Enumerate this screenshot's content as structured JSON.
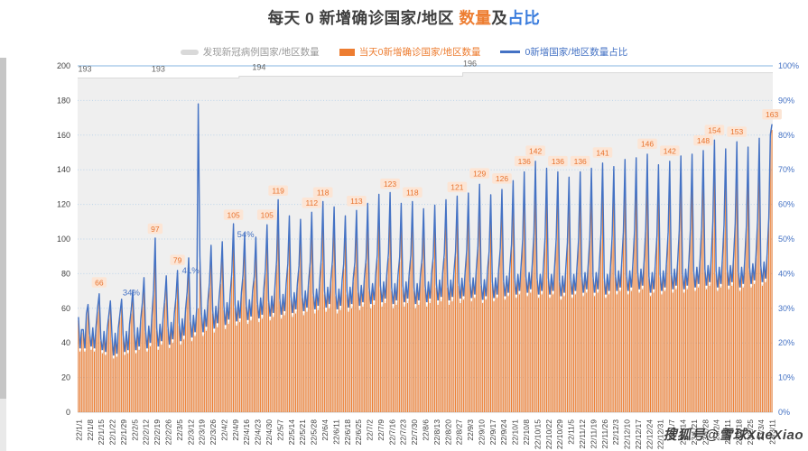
{
  "title": {
    "text_main": "每天 0 新增确诊国家/地区 ",
    "text_count": "数量",
    "text_and": "及",
    "text_pct": "占比",
    "color_main": "#3f3f3f",
    "color_count": "#ED7D31",
    "color_pct": "#3B7DDD"
  },
  "legend": {
    "items": [
      {
        "label": "发现新冠病例国家/地区数量",
        "color": "#D9D9D9",
        "swatch": "area"
      },
      {
        "label": "当天0新增确诊国家/地区数量",
        "color": "#ED7D31",
        "swatch": "bar"
      },
      {
        "label": "0新增国家/地区数量占比",
        "color": "#4472C4",
        "swatch": "line"
      }
    ]
  },
  "watermark": {
    "text": "搜狐号@雪球XueXiao"
  },
  "chart_data": {
    "type": "combo",
    "title": "每天 0 新增确诊国家/地区 数量及占比",
    "frequency": "daily",
    "start_date": "22/1/1",
    "end_date": "23/3/11",
    "n_days": 435,
    "grid": true,
    "left_axis": {
      "min": 0,
      "max": 200,
      "step": 20,
      "tick_labels": [
        "0",
        "20",
        "40",
        "60",
        "80",
        "100",
        "120",
        "140",
        "160",
        "180",
        "200"
      ],
      "color": "#404040"
    },
    "right_axis": {
      "min": 0,
      "max": 100,
      "step": 10,
      "tick_labels": [
        "0%",
        "10%",
        "20%",
        "30%",
        "40%",
        "50%",
        "60%",
        "70%",
        "80%",
        "90%",
        "100%"
      ],
      "color": "#4472C4"
    },
    "x_tick_labels": [
      "22/1/1",
      "22/1/8",
      "22/1/15",
      "22/1/22",
      "22/1/29",
      "22/2/5",
      "22/2/12",
      "22/2/19",
      "22/2/26",
      "22/3/5",
      "22/3/12",
      "22/3/19",
      "22/3/26",
      "22/4/2",
      "22/4/9",
      "22/4/16",
      "22/4/23",
      "22/4/30",
      "22/5/7",
      "22/5/14",
      "22/5/21",
      "22/5/28",
      "22/6/4",
      "22/6/11",
      "22/6/18",
      "22/6/25",
      "22/7/2",
      "22/7/9",
      "22/7/16",
      "22/7/23",
      "22/7/30",
      "22/8/6",
      "22/8/13",
      "22/8/20",
      "22/8/27",
      "22/9/3",
      "22/9/10",
      "22/9/17",
      "22/9/24",
      "22/10/1",
      "22/10/8",
      "22/10/15",
      "22/10/22",
      "22/10/29",
      "22/11/5",
      "22/11/12",
      "22/11/19",
      "22/11/26",
      "22/12/3",
      "22/12/10",
      "22/12/17",
      "22/12/24",
      "22/12/31",
      "23/1/7",
      "23/1/14",
      "23/1/21",
      "23/1/28",
      "23/2/4",
      "23/2/11",
      "23/2/18",
      "23/2/25",
      "23/3/4",
      "23/3/11"
    ],
    "series": [
      {
        "name": "发现新冠病例国家/地区数量",
        "type": "area",
        "axis": "left",
        "fill_color": "#EFEFEF",
        "edge_color": "#D9D9D9",
        "segments": [
          {
            "through_day": 100,
            "value": 193
          },
          {
            "through_day": 240,
            "value": 194
          },
          {
            "through_day": 434,
            "value": 196
          }
        ],
        "value_labels": [
          {
            "day": 4,
            "text": "193"
          },
          {
            "day": 50,
            "text": "193"
          },
          {
            "day": 113,
            "text": "194"
          },
          {
            "day": 245,
            "text": "196"
          }
        ]
      },
      {
        "name": "当天0新增确诊国家/地区数量",
        "type": "bar",
        "axis": "left",
        "color": "#ED7D31",
        "label_box_color": "#FCE5D5",
        "label_text_color": "#E8732E",
        "values": [
          53,
          35,
          46,
          46,
          35,
          55,
          60,
          44,
          36,
          47,
          35,
          48,
          58,
          66,
          41,
          34,
          45,
          33,
          46,
          54,
          62,
          42,
          31,
          44,
          32,
          47,
          55,
          63,
          43,
          33,
          45,
          34,
          49,
          57,
          68,
          45,
          34,
          47,
          36,
          52,
          61,
          75,
          46,
          35,
          48,
          38,
          54,
          68,
          97,
          47,
          36,
          49,
          39,
          53,
          63,
          76,
          48,
          37,
          50,
          40,
          55,
          64,
          79,
          50,
          39,
          52,
          42,
          57,
          67,
          86,
          52,
          41,
          54,
          44,
          58,
          60,
          87,
          55,
          44,
          57,
          47,
          62,
          72,
          93,
          57,
          46,
          59,
          49,
          64,
          74,
          95,
          59,
          48,
          61,
          51,
          66,
          78,
          105,
          60,
          50,
          62,
          52,
          67,
          77,
          100,
          61,
          51,
          63,
          53,
          68,
          76,
          98,
          62,
          52,
          64,
          54,
          69,
          80,
          105,
          63,
          53,
          65,
          55,
          71,
          85,
          119,
          64,
          54,
          66,
          56,
          72,
          83,
          110,
          65,
          55,
          67,
          57,
          72,
          82,
          108,
          66,
          56,
          68,
          58,
          73,
          84,
          112,
          67,
          57,
          69,
          59,
          74,
          86,
          118,
          68,
          58,
          70,
          60,
          75,
          85,
          115,
          67,
          57,
          69,
          59,
          74,
          83,
          110,
          68,
          58,
          70,
          60,
          75,
          84,
          113,
          69,
          59,
          71,
          61,
          76,
          86,
          117,
          70,
          60,
          72,
          62,
          77,
          88,
          122,
          71,
          61,
          73,
          63,
          78,
          89,
          123,
          70,
          60,
          72,
          62,
          77,
          87,
          117,
          71,
          61,
          73,
          63,
          78,
          88,
          118,
          70,
          60,
          72,
          62,
          77,
          86,
          114,
          71,
          61,
          73,
          63,
          78,
          87,
          116,
          72,
          62,
          74,
          64,
          79,
          89,
          119,
          72,
          62,
          74,
          64,
          79,
          90,
          121,
          73,
          63,
          75,
          65,
          80,
          92,
          124,
          74,
          64,
          76,
          66,
          81,
          94,
          129,
          73,
          63,
          75,
          65,
          80,
          91,
          123,
          74,
          64,
          76,
          66,
          81,
          93,
          126,
          75,
          65,
          77,
          67,
          82,
          95,
          131,
          76,
          66,
          78,
          68,
          83,
          98,
          136,
          77,
          67,
          79,
          69,
          84,
          101,
          142,
          76,
          66,
          78,
          68,
          83,
          99,
          138,
          76,
          66,
          78,
          68,
          83,
          98,
          136,
          75,
          65,
          77,
          67,
          82,
          96,
          133,
          76,
          66,
          78,
          68,
          83,
          98,
          136,
          77,
          67,
          79,
          69,
          84,
          99,
          138,
          77,
          67,
          79,
          69,
          84,
          101,
          141,
          76,
          66,
          78,
          68,
          83,
          100,
          139,
          78,
          68,
          80,
          70,
          85,
          102,
          143,
          78,
          68,
          80,
          70,
          85,
          103,
          144,
          79,
          69,
          81,
          71,
          86,
          104,
          146,
          77,
          67,
          79,
          69,
          84,
          100,
          140,
          78,
          68,
          80,
          70,
          85,
          102,
          142,
          79,
          69,
          81,
          71,
          86,
          103,
          145,
          79,
          69,
          81,
          71,
          86,
          104,
          146,
          80,
          70,
          82,
          72,
          87,
          105,
          148,
          81,
          71,
          83,
          73,
          88,
          108,
          154,
          80,
          70,
          82,
          72,
          87,
          106,
          149,
          81,
          71,
          83,
          73,
          88,
          107,
          153,
          80,
          70,
          82,
          72,
          87,
          106,
          150,
          82,
          72,
          84,
          74,
          89,
          109,
          155,
          83,
          73,
          85,
          75,
          90,
          110,
          157,
          163
        ],
        "value_labels": [
          {
            "day": 13,
            "value": 66
          },
          {
            "day": 48,
            "value": 97
          },
          {
            "day": 62,
            "value": 79
          },
          {
            "day": 97,
            "value": 105
          },
          {
            "day": 118,
            "value": 105
          },
          {
            "day": 125,
            "value": 119
          },
          {
            "day": 146,
            "value": 112
          },
          {
            "day": 153,
            "value": 118
          },
          {
            "day": 174,
            "value": 113
          },
          {
            "day": 195,
            "value": 123
          },
          {
            "day": 209,
            "value": 118
          },
          {
            "day": 237,
            "value": 121
          },
          {
            "day": 251,
            "value": 129
          },
          {
            "day": 265,
            "value": 126
          },
          {
            "day": 279,
            "value": 136
          },
          {
            "day": 286,
            "value": 142
          },
          {
            "day": 300,
            "value": 136
          },
          {
            "day": 314,
            "value": 136
          },
          {
            "day": 328,
            "value": 141
          },
          {
            "day": 356,
            "value": 146
          },
          {
            "day": 370,
            "value": 142
          },
          {
            "day": 391,
            "value": 148
          },
          {
            "day": 398,
            "value": 154
          },
          {
            "day": 412,
            "value": 153
          },
          {
            "day": 434,
            "value": 163
          }
        ]
      },
      {
        "name": "0新增国家/地区数量占比",
        "type": "line",
        "axis": "right",
        "color": "#4472C4",
        "derived": "bar_value / total_countries * 100",
        "pct_overrides": {
          "75": 89
        },
        "value_labels": [
          {
            "day": 13,
            "text": "34%",
            "dx": 26,
            "dy": 2
          },
          {
            "day": 62,
            "text": "41%",
            "dx": 5,
            "dy": 3
          },
          {
            "day": 97,
            "text": "54%",
            "dx": 4,
            "dy": 15
          }
        ]
      }
    ]
  }
}
